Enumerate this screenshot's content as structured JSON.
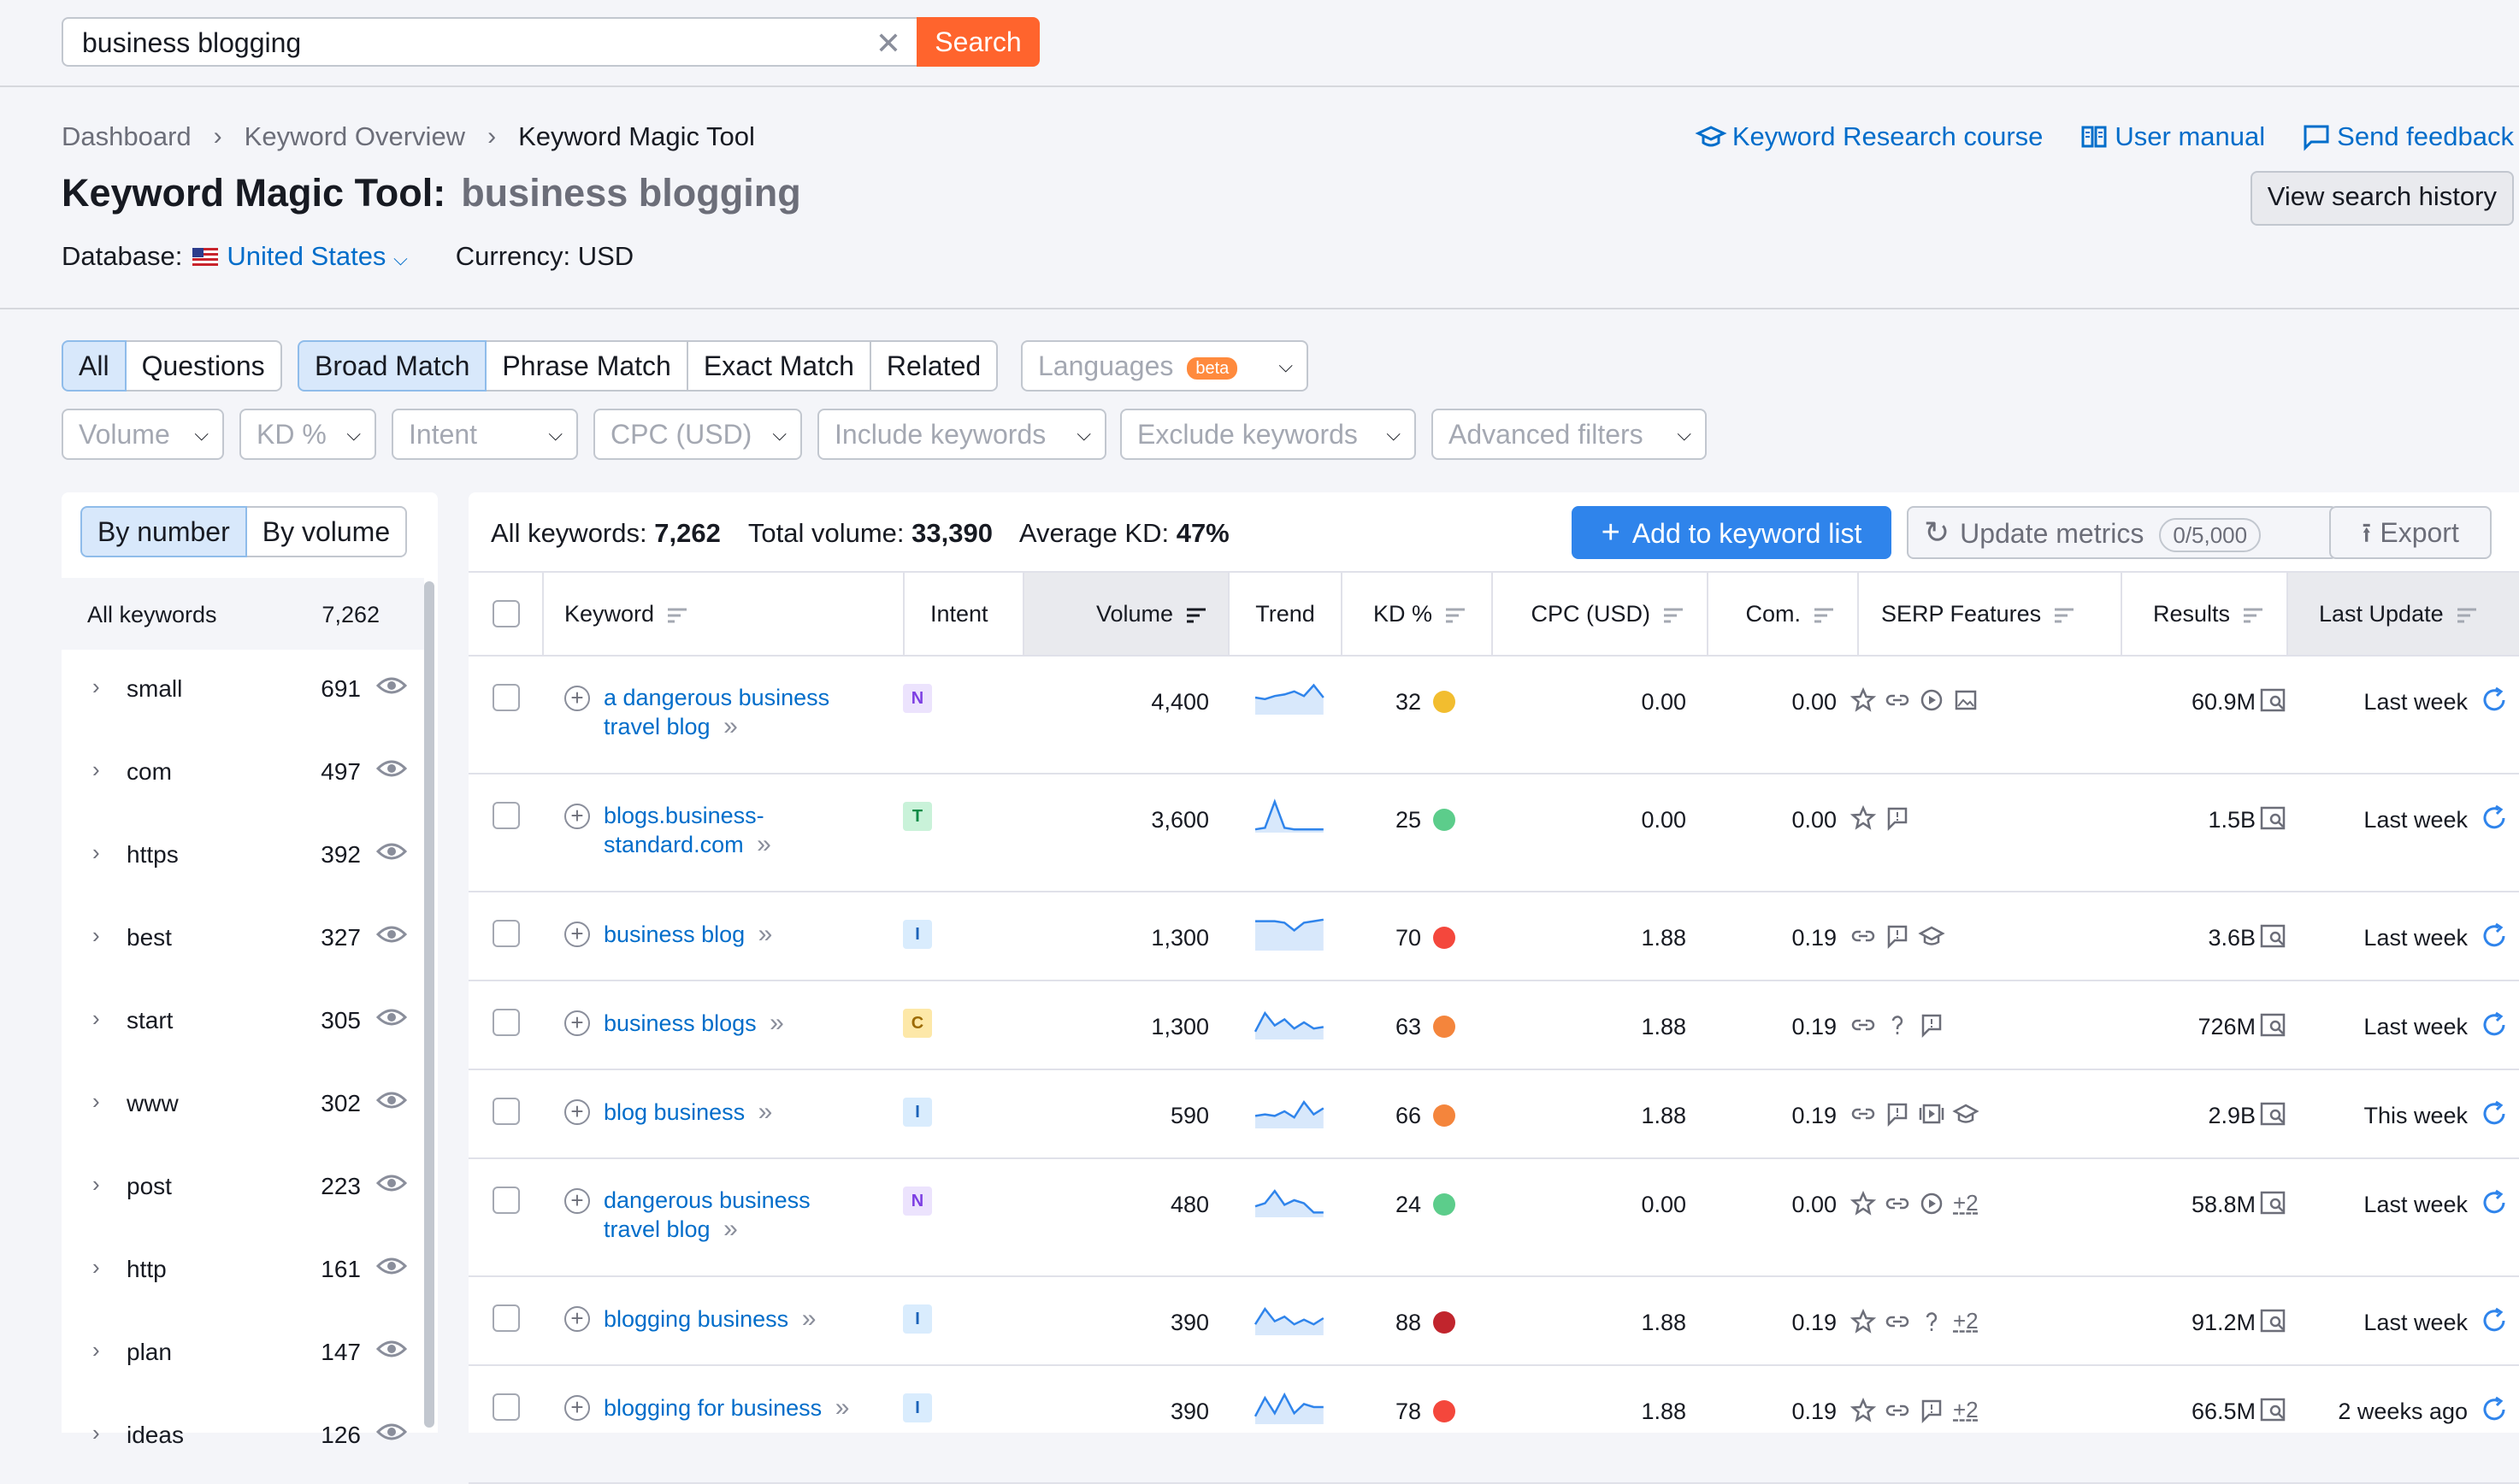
{
  "search": {
    "value": "business blogging",
    "button": "Search"
  },
  "breadcrumb": [
    "Dashboard",
    "Keyword Overview",
    "Keyword Magic Tool"
  ],
  "title": {
    "label": "Keyword Magic Tool:",
    "keyword": "business blogging"
  },
  "database": {
    "label": "Database:",
    "country": "United States",
    "currency": "Currency: USD"
  },
  "header_links": {
    "course": "Keyword Research course",
    "manual": "User manual",
    "feedback": "Send feedback",
    "history": "View search history"
  },
  "tabs": {
    "group1": [
      "All",
      "Questions"
    ],
    "group2": [
      "Broad Match",
      "Phrase Match",
      "Exact Match",
      "Related"
    ],
    "languages": "Languages",
    "beta": "beta"
  },
  "filters": [
    "Volume",
    "KD %",
    "Intent",
    "CPC (USD)",
    "Include keywords",
    "Exclude keywords",
    "Advanced filters"
  ],
  "sidebar": {
    "toggle": [
      "By number",
      "By volume"
    ],
    "all_label": "All keywords",
    "all_count": "7,262",
    "items": [
      {
        "label": "small",
        "count": "691"
      },
      {
        "label": "com",
        "count": "497"
      },
      {
        "label": "https",
        "count": "392"
      },
      {
        "label": "best",
        "count": "327"
      },
      {
        "label": "start",
        "count": "305"
      },
      {
        "label": "www",
        "count": "302"
      },
      {
        "label": "post",
        "count": "223"
      },
      {
        "label": "http",
        "count": "161"
      },
      {
        "label": "plan",
        "count": "147"
      },
      {
        "label": "ideas",
        "count": "126"
      }
    ]
  },
  "summary": {
    "all_label": "All keywords:",
    "all_value": "7,262",
    "vol_label": "Total volume:",
    "vol_value": "33,390",
    "kd_label": "Average KD:",
    "kd_value": "47%"
  },
  "actions": {
    "add": "Add to keyword list",
    "update": "Update metrics",
    "counter": "0/5,000",
    "export": "Export"
  },
  "columns": [
    "Keyword",
    "Intent",
    "Volume",
    "Trend",
    "KD %",
    "CPC (USD)",
    "Com.",
    "SERP Features",
    "Results",
    "Last Update"
  ],
  "rows": [
    {
      "kw1": "a dangerous business",
      "kw2": "travel blog",
      "intent": "N",
      "volume": "4,400",
      "kd": "32",
      "kdcolor": "#f2bd2f",
      "cpc": "0.00",
      "com": "0.00",
      "serp": [
        "star-icon",
        "link-icon",
        "video-icon",
        "image-icon"
      ],
      "more": "",
      "results": "60.9M",
      "updated": "Last week",
      "trend": [
        0.5,
        0.45,
        0.55,
        0.6,
        0.7,
        0.55,
        0.9,
        0.5
      ]
    },
    {
      "kw1": "blogs.business-",
      "kw2": "standard.com",
      "intent": "T",
      "volume": "3,600",
      "kd": "25",
      "kdcolor": "#5ccd8b",
      "cpc": "0.00",
      "com": "0.00",
      "serp": [
        "star-icon",
        "review-icon"
      ],
      "more": "",
      "results": "1.5B",
      "updated": "Last week",
      "trend": [
        0.05,
        0.1,
        0.95,
        0.1,
        0.05,
        0.05,
        0.05,
        0.05
      ]
    },
    {
      "kw1": "business blog",
      "kw2": "",
      "intent": "I",
      "volume": "1,300",
      "kd": "70",
      "kdcolor": "#f4473c",
      "cpc": "1.88",
      "com": "0.19",
      "serp": [
        "link-icon",
        "review-icon",
        "graduation-icon"
      ],
      "more": "",
      "results": "3.6B",
      "updated": "Last week",
      "trend": [
        0.9,
        0.9,
        0.9,
        0.85,
        0.6,
        0.85,
        0.9,
        0.95
      ]
    },
    {
      "kw1": "business blogs",
      "kw2": "",
      "intent": "C",
      "volume": "1,300",
      "kd": "63",
      "kdcolor": "#f4853c",
      "cpc": "1.88",
      "com": "0.19",
      "serp": [
        "link-icon",
        "question-icon",
        "review-icon"
      ],
      "more": "",
      "results": "726M",
      "updated": "Last week",
      "trend": [
        0.2,
        0.8,
        0.4,
        0.6,
        0.3,
        0.5,
        0.3,
        0.35
      ]
    },
    {
      "kw1": "blog business",
      "kw2": "",
      "intent": "I",
      "volume": "590",
      "kd": "66",
      "kdcolor": "#f4853c",
      "cpc": "1.88",
      "com": "0.19",
      "serp": [
        "link-icon",
        "review-icon",
        "video-carousel-icon",
        "graduation-icon"
      ],
      "more": "",
      "results": "2.9B",
      "updated": "This week",
      "trend": [
        0.35,
        0.4,
        0.35,
        0.5,
        0.3,
        0.8,
        0.4,
        0.6
      ]
    },
    {
      "kw1": "dangerous business",
      "kw2": "travel blog",
      "intent": "N",
      "volume": "480",
      "kd": "24",
      "kdcolor": "#5ccd8b",
      "cpc": "0.00",
      "com": "0.00",
      "serp": [
        "star-icon",
        "link-icon",
        "video-icon"
      ],
      "more": "+2",
      "results": "58.8M",
      "updated": "Last week",
      "trend": [
        0.3,
        0.4,
        0.8,
        0.35,
        0.5,
        0.4,
        0.1,
        0.1
      ]
    },
    {
      "kw1": "blogging business",
      "kw2": "",
      "intent": "I",
      "volume": "390",
      "kd": "88",
      "kdcolor": "#c1252d",
      "cpc": "1.88",
      "com": "0.19",
      "serp": [
        "star-icon",
        "link-icon",
        "question-icon"
      ],
      "more": "+2",
      "results": "91.2M",
      "updated": "Last week",
      "trend": [
        0.3,
        0.8,
        0.4,
        0.55,
        0.3,
        0.45,
        0.3,
        0.5
      ]
    },
    {
      "kw1": "blogging for business",
      "kw2": "",
      "intent": "I",
      "volume": "390",
      "kd": "78",
      "kdcolor": "#f4473c",
      "cpc": "1.88",
      "com": "0.19",
      "serp": [
        "star-icon",
        "link-icon",
        "review-icon"
      ],
      "more": "+2",
      "results": "66.5M",
      "updated": "2 weeks ago",
      "trend": [
        0.2,
        0.8,
        0.3,
        0.9,
        0.3,
        0.6,
        0.5,
        0.5
      ]
    }
  ],
  "colors": {
    "accent": "#006dca",
    "search_button": "#ff642d",
    "primary_button": "#2f84eb"
  }
}
